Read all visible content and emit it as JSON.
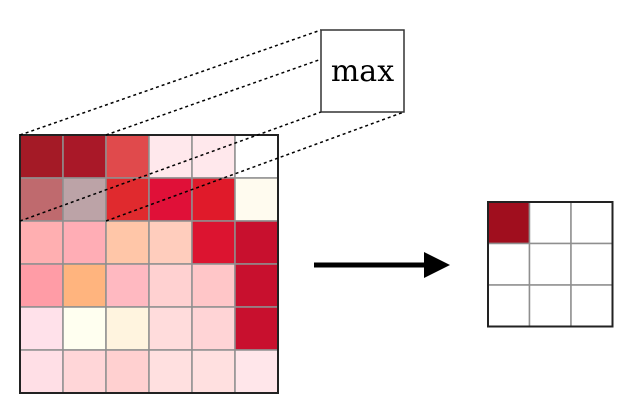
{
  "max_box": {
    "label": "max"
  },
  "input_grid": {
    "rows": 6,
    "cols": 6,
    "cell_colors": [
      [
        "#a41a26",
        "#a91828",
        "#e04a4c",
        "#ffe8ec",
        "#ffe8ec",
        "#ffffff"
      ],
      [
        "#bf6a6e",
        "#bca3a7",
        "#e02a2e",
        "#e01038",
        "#e01a2a",
        "#fffbef"
      ],
      [
        "#ffafb1",
        "#ffadb5",
        "#ffc6a8",
        "#ffcdbd",
        "#dc1430",
        "#c8102e"
      ],
      [
        "#ff9ca6",
        "#ffb47e",
        "#ffb9c1",
        "#ffd1d1",
        "#ffc6c8",
        "#c8102e"
      ],
      [
        "#ffe1ea",
        "#fffff0",
        "#fff4df",
        "#ffdcdc",
        "#ffd4d6",
        "#c8102e"
      ],
      [
        "#ffdfe6",
        "#ffd6d8",
        "#ffd0d0",
        "#ffe0e0",
        "#ffe0e0",
        "#ffe6ea"
      ]
    ],
    "pool_window": {
      "rows": 2,
      "cols": 2
    }
  },
  "output_grid": {
    "rows": 3,
    "cols": 3,
    "cell_colors": [
      [
        "#a00e1e",
        "#ffffff",
        "#ffffff"
      ],
      [
        "#ffffff",
        "#ffffff",
        "#ffffff"
      ],
      [
        "#ffffff",
        "#ffffff",
        "#ffffff"
      ]
    ]
  }
}
